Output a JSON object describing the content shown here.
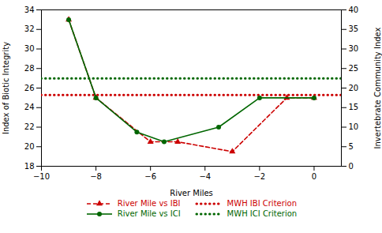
{
  "chart_data": {
    "type": "line",
    "xlabel": "River Miles",
    "ylabel": "Index of Biotic Integrity",
    "y2label": "Invertebrate Community Index",
    "xlim": [
      -10,
      1
    ],
    "xticks": [
      -10,
      -8,
      -6,
      -4,
      -2,
      0
    ],
    "ylim": [
      18,
      34
    ],
    "yticks": [
      18,
      20,
      22,
      24,
      26,
      28,
      30,
      32,
      34
    ],
    "y2lim": [
      0,
      40
    ],
    "y2ticks": [
      0,
      5,
      10,
      15,
      20,
      25,
      30,
      35,
      40
    ],
    "grid": false,
    "legend": "bottom",
    "series": [
      {
        "name": "River Mile vs IBI",
        "color": "#cc0000",
        "x": [
          -9,
          -8,
          -6,
          -5,
          -3,
          -1,
          0
        ],
        "values": [
          33,
          25,
          20.5,
          20.5,
          19.5,
          25,
          25
        ],
        "marker": "triangle",
        "line_style": "dashed"
      },
      {
        "name": "MWH IBI Criterion",
        "type": "hline",
        "color": "#cc0000",
        "value": 25.3,
        "line_style": "dotted"
      },
      {
        "name": "River Mile vs ICI",
        "color": "#006600",
        "x": [
          -9,
          -8,
          -6.5,
          -5.5,
          -3.5,
          -2,
          0
        ],
        "values": [
          33,
          25,
          21.5,
          20.5,
          22,
          25,
          25
        ],
        "marker": "circle",
        "line_style": "solid"
      },
      {
        "name": "MWH ICI Criterion",
        "type": "hline",
        "color": "#006600",
        "value": 27,
        "line_style": "dotted"
      }
    ]
  }
}
